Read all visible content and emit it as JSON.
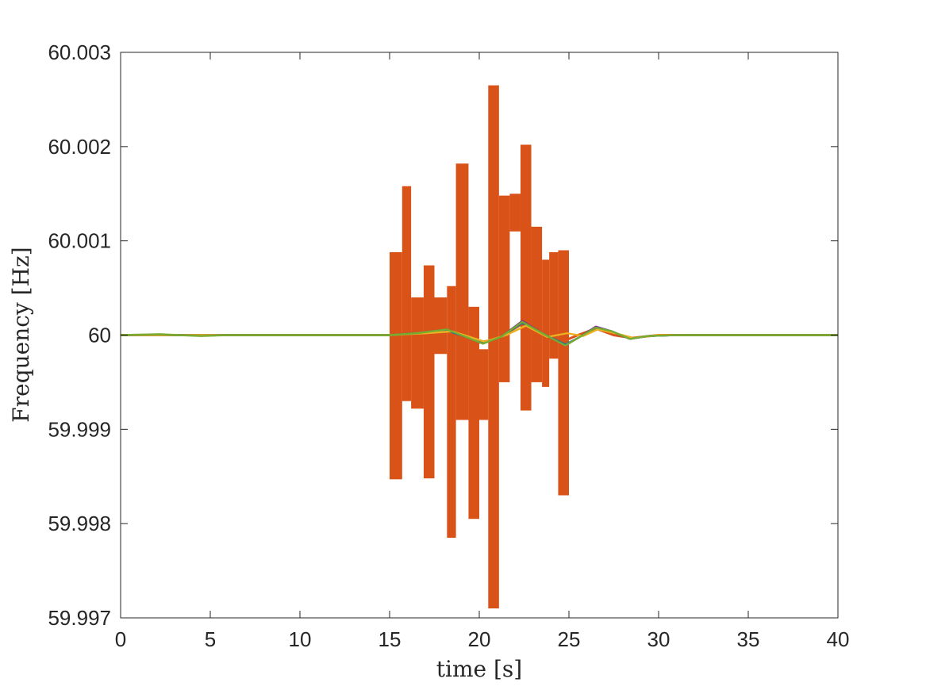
{
  "chart_data": {
    "type": "line",
    "xlabel": "time [s]",
    "ylabel": "Frequency [Hz]",
    "xlim": [
      0,
      40
    ],
    "ylim": [
      59.997,
      60.003
    ],
    "x_ticks": [
      0,
      5,
      10,
      15,
      20,
      25,
      30,
      35,
      40
    ],
    "x_tick_labels": [
      "0",
      "5",
      "10",
      "15",
      "20",
      "25",
      "30",
      "35",
      "40"
    ],
    "y_ticks": [
      59.997,
      59.998,
      59.999,
      60,
      60.001,
      60.002,
      60.003
    ],
    "y_tick_labels": [
      "59.997",
      "59.998",
      "59.999",
      "60",
      "60.001",
      "60.002",
      "60.003"
    ],
    "grid": false,
    "legend": "none",
    "series": [
      {
        "color": "#D95319",
        "kind": "oscillating band (rapid switching between segments)",
        "segments": [
          {
            "x": [
              15.0,
              15.7
            ],
            "y_min": 59.99847,
            "y_max": 60.00088
          },
          {
            "x": [
              15.7,
              16.2
            ],
            "y_min": 59.9993,
            "y_max": 60.00158
          },
          {
            "x": [
              16.2,
              16.9
            ],
            "y_min": 59.99922,
            "y_max": 60.0004
          },
          {
            "x": [
              16.9,
              17.5
            ],
            "y_min": 59.99848,
            "y_max": 60.00074
          },
          {
            "x": [
              17.5,
              18.2
            ],
            "y_min": 59.9998,
            "y_max": 60.0004
          },
          {
            "x": [
              18.2,
              18.7
            ],
            "y_min": 59.99785,
            "y_max": 60.00052
          },
          {
            "x": [
              18.7,
              19.4
            ],
            "y_min": 59.9991,
            "y_max": 60.00182
          },
          {
            "x": [
              19.4,
              20.0
            ],
            "y_min": 59.99805,
            "y_max": 60.0003
          },
          {
            "x": [
              20.0,
              20.5
            ],
            "y_min": 59.9991,
            "y_max": 59.99985
          },
          {
            "x": [
              20.5,
              21.1
            ],
            "y_min": 59.9971,
            "y_max": 60.00265
          },
          {
            "x": [
              21.1,
              21.7
            ],
            "y_min": 59.9995,
            "y_max": 60.00148
          },
          {
            "x": [
              21.7,
              22.3
            ],
            "y_min": 60.0011,
            "y_max": 60.0015
          },
          {
            "x": [
              22.3,
              22.9
            ],
            "y_min": 59.9992,
            "y_max": 60.00202
          },
          {
            "x": [
              22.9,
              23.5
            ],
            "y_min": 59.9995,
            "y_max": 60.00115
          },
          {
            "x": [
              23.5,
              23.9
            ],
            "y_min": 59.99945,
            "y_max": 60.0008
          },
          {
            "x": [
              23.9,
              24.4
            ],
            "y_min": 59.99975,
            "y_max": 60.00088
          },
          {
            "x": [
              24.4,
              25.0
            ],
            "y_min": 59.9983,
            "y_max": 60.0009
          }
        ],
        "baseline": {
          "x": [
            0,
            2,
            4,
            6,
            8,
            15,
            18,
            20,
            21,
            22.4,
            23.5,
            24.5,
            25.5,
            26.5,
            27.5,
            28.5,
            30,
            40
          ],
          "y": [
            60.0,
            60.0,
            60.0,
            60.0,
            60.0,
            60.0,
            60.00005,
            59.99992,
            59.99996,
            60.00012,
            60.0,
            59.99992,
            60.0,
            60.00007,
            60.0,
            59.99997,
            60.0,
            60.0
          ]
        }
      },
      {
        "color": "#7E2F8E",
        "x": [
          0,
          5,
          10,
          15,
          16.5,
          18.2,
          20.2,
          21.2,
          22.4,
          23.6,
          24.8,
          25.6,
          26.5,
          27.4,
          28.4,
          29.4,
          31,
          35,
          40
        ],
        "y": [
          60.0,
          60.0,
          60.0,
          60.0,
          60.00002,
          60.00006,
          59.99991,
          59.99998,
          60.00015,
          60.00001,
          59.99989,
          59.99998,
          60.00009,
          60.00004,
          59.99996,
          59.99999,
          60.0,
          60.0,
          60.0
        ]
      },
      {
        "color": "#0072BD",
        "x": [
          0,
          5,
          10,
          15,
          16.5,
          18.2,
          20.2,
          21.2,
          22.4,
          23.6,
          24.8,
          25.6,
          26.5,
          27.4,
          28.4,
          29.4,
          31,
          35,
          40
        ],
        "y": [
          60.0,
          60.0,
          60.0,
          60.0,
          60.00002,
          60.00005,
          59.99992,
          59.99998,
          60.00013,
          60.00001,
          59.9999,
          59.99998,
          60.00008,
          60.00004,
          59.99996,
          59.99999,
          60.0,
          60.0,
          60.0
        ]
      },
      {
        "color": "#EDB120",
        "x": [
          0,
          5,
          10,
          15,
          17,
          18.5,
          20.3,
          21.5,
          22.6,
          23.8,
          24.9,
          25.8,
          26.6,
          27.6,
          28.6,
          30,
          35,
          40
        ],
        "y": [
          60.0,
          60.0,
          60.0,
          60.0,
          60.00002,
          60.00004,
          59.99993,
          60.0,
          60.0001,
          59.99998,
          60.00002,
          59.99999,
          60.00006,
          60.00002,
          59.99997,
          60.0,
          60.0,
          60.0
        ]
      },
      {
        "color": "#77AC30",
        "x": [
          0,
          2.2,
          3.2,
          4.5,
          6,
          8,
          15,
          16.5,
          18.2,
          20.2,
          21.2,
          22.4,
          23.6,
          24.8,
          25.6,
          26.5,
          27.4,
          28.4,
          29.4,
          31,
          35,
          40
        ],
        "y": [
          60.0,
          60.00001,
          60.0,
          59.99999,
          60.0,
          60.0,
          60.0,
          60.00002,
          60.00006,
          59.99991,
          59.99998,
          60.00014,
          60.00001,
          59.99989,
          59.99998,
          60.00008,
          60.00004,
          59.99996,
          59.99999,
          60.0,
          60.0,
          60.0
        ]
      }
    ]
  }
}
